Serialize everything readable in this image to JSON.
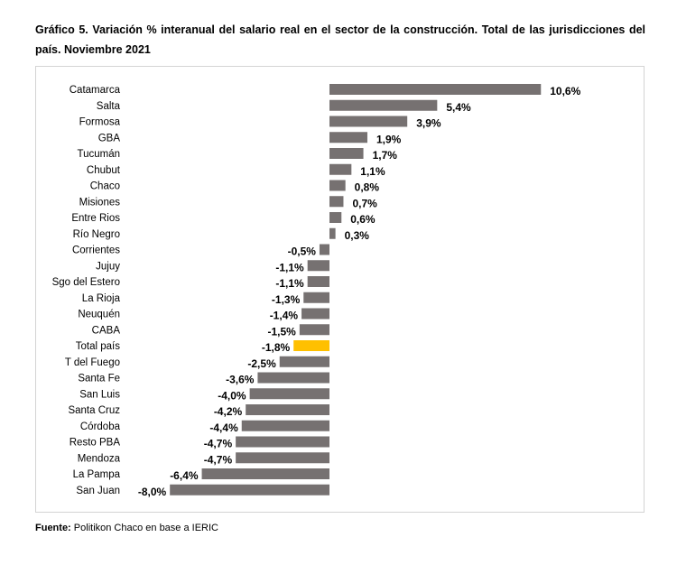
{
  "chart_data": {
    "type": "bar",
    "orientation": "horizontal",
    "title": "Gráfico 5. Variación % interanual del salario real en el sector de la construcción. Total de las jurisdicciones del país. Noviembre 2021",
    "categories": [
      "Catamarca",
      "Salta",
      "Formosa",
      "GBA",
      "Tucumán",
      "Chubut",
      "Chaco",
      "Misiones",
      "Entre Rios",
      "Río Negro",
      "Corrientes",
      "Jujuy",
      "Sgo del Estero",
      "La Rioja",
      "Neuquén",
      "CABA",
      "Total país",
      "T del Fuego",
      "Santa Fe",
      "San Luis",
      "Santa Cruz",
      "Córdoba",
      "Resto PBA",
      "Mendoza",
      "La Pampa",
      "San Juan"
    ],
    "values": [
      10.6,
      5.4,
      3.9,
      1.9,
      1.7,
      1.1,
      0.8,
      0.7,
      0.6,
      0.3,
      -0.5,
      -1.1,
      -1.1,
      -1.3,
      -1.4,
      -1.5,
      -1.8,
      -2.5,
      -3.6,
      -4.0,
      -4.2,
      -4.4,
      -4.7,
      -4.7,
      -6.4,
      -8.0
    ],
    "labels": [
      "10,6%",
      "5,4%",
      "3,9%",
      "1,9%",
      "1,7%",
      "1,1%",
      "0,8%",
      "0,7%",
      "0,6%",
      "0,3%",
      "-0,5%",
      "-1,1%",
      "-1,1%",
      "-1,3%",
      "-1,4%",
      "-1,5%",
      "-1,8%",
      "-2,5%",
      "-3,6%",
      "-4,0%",
      "-4,2%",
      "-4,4%",
      "-4,7%",
      "-4,7%",
      "-6,4%",
      "-8,0%"
    ],
    "highlight": "Total país",
    "xlabel": "",
    "ylabel": "",
    "xlim": [
      -8.0,
      10.6
    ],
    "grid": false,
    "legend": "none"
  },
  "colors": {
    "bar": "#767171",
    "highlight": "#FFC000"
  },
  "source": {
    "label": "Fuente:",
    "text": " Politikon Chaco en base a IERIC"
  }
}
